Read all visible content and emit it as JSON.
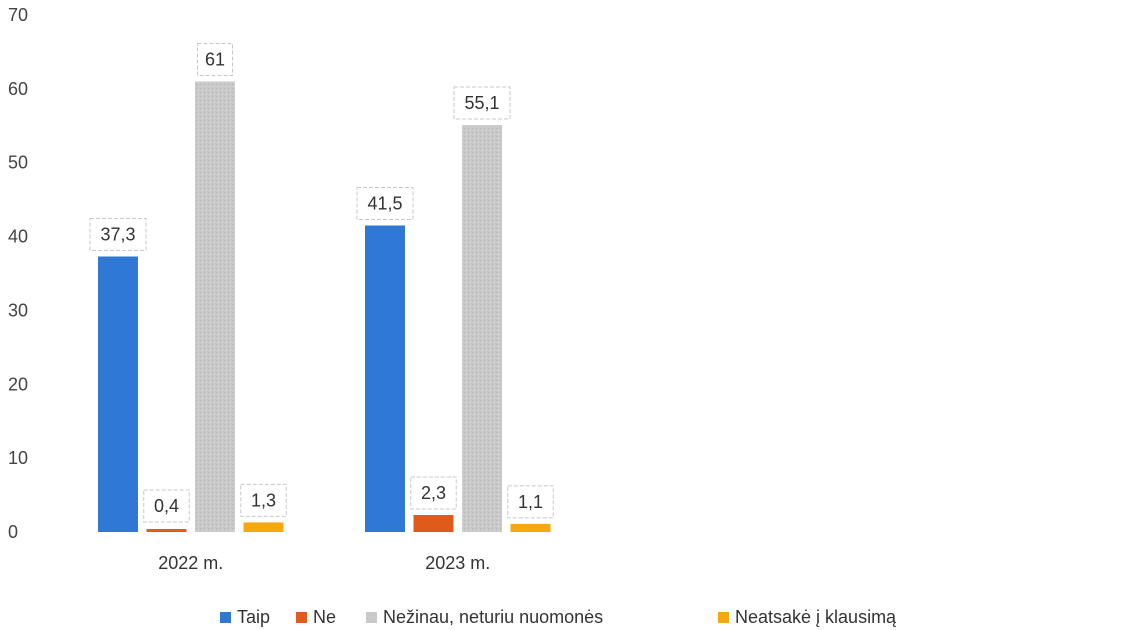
{
  "chart_data": {
    "type": "bar",
    "categories": [
      "2022 m.",
      "2023 m."
    ],
    "series": [
      {
        "name": "Taip",
        "values": [
          37.3,
          41.5
        ],
        "labels": [
          "37,3",
          "41,5"
        ],
        "color": "#2f78d4"
      },
      {
        "name": "Ne",
        "values": [
          0.4,
          2.3
        ],
        "labels": [
          "0,4",
          "2,3"
        ],
        "color": "#e05a1a"
      },
      {
        "name": "Nežinau, neturiu nuomonės",
        "values": [
          61,
          55.1
        ],
        "labels": [
          "61",
          "55,1"
        ],
        "color": "#c9c9c9"
      },
      {
        "name": "Neatsakė į klausimą",
        "values": [
          1.3,
          1.1
        ],
        "labels": [
          "1,3",
          "1,1"
        ],
        "color": "#f5a80f"
      }
    ],
    "ylim": [
      0,
      70
    ],
    "yticks": [
      "0",
      "10",
      "20",
      "30",
      "40",
      "50",
      "60",
      "70"
    ],
    "grid": false,
    "legend_position": "bottom"
  }
}
